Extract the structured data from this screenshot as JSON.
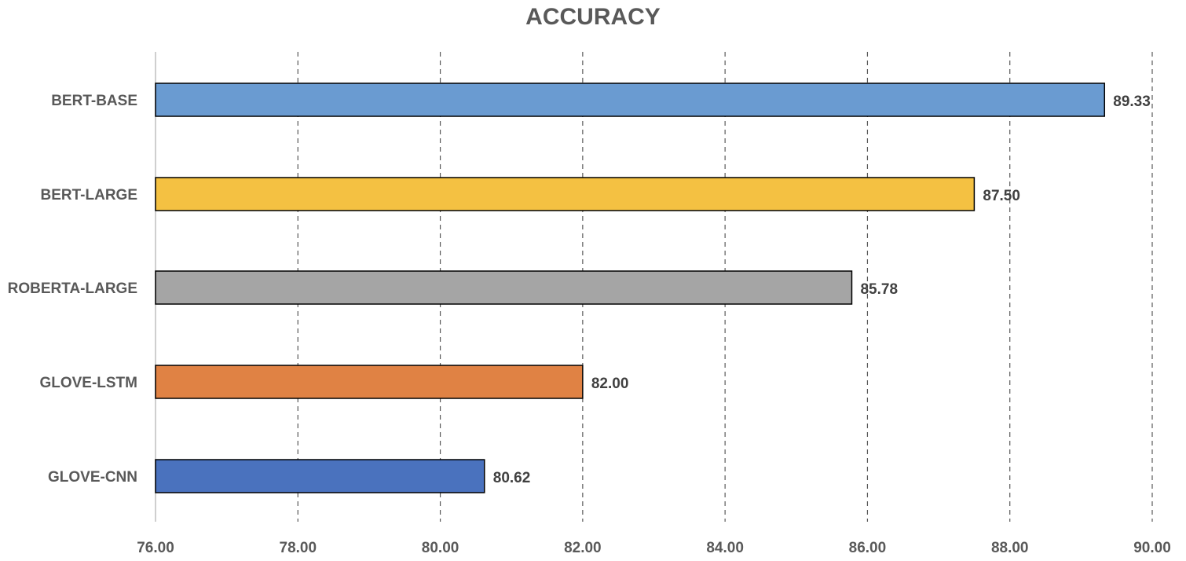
{
  "chart_data": {
    "type": "bar",
    "orientation": "horizontal",
    "title": "ACCURACY",
    "xlabel": "",
    "ylabel": "",
    "categories": [
      "BERT-BASE",
      "BERT-LARGE",
      "ROBERTA-LARGE",
      "GLOVE-LSTM",
      "GLOVE-CNN"
    ],
    "values": [
      89.33,
      87.5,
      85.78,
      82.0,
      80.62
    ],
    "value_labels": [
      "89.33",
      "87.50",
      "85.78",
      "82.00",
      "80.62"
    ],
    "bar_colors": [
      "#6a9bd1",
      "#f4c142",
      "#a5a5a5",
      "#e08244",
      "#4a72be"
    ],
    "xlim": [
      76,
      90
    ],
    "x_ticks": [
      76,
      78,
      80,
      82,
      84,
      86,
      88,
      90
    ],
    "x_tick_labels": [
      "76.00",
      "78.00",
      "80.00",
      "82.00",
      "84.00",
      "86.00",
      "88.00",
      "90.00"
    ],
    "grid": "vertical-dashed",
    "legend": "none"
  }
}
